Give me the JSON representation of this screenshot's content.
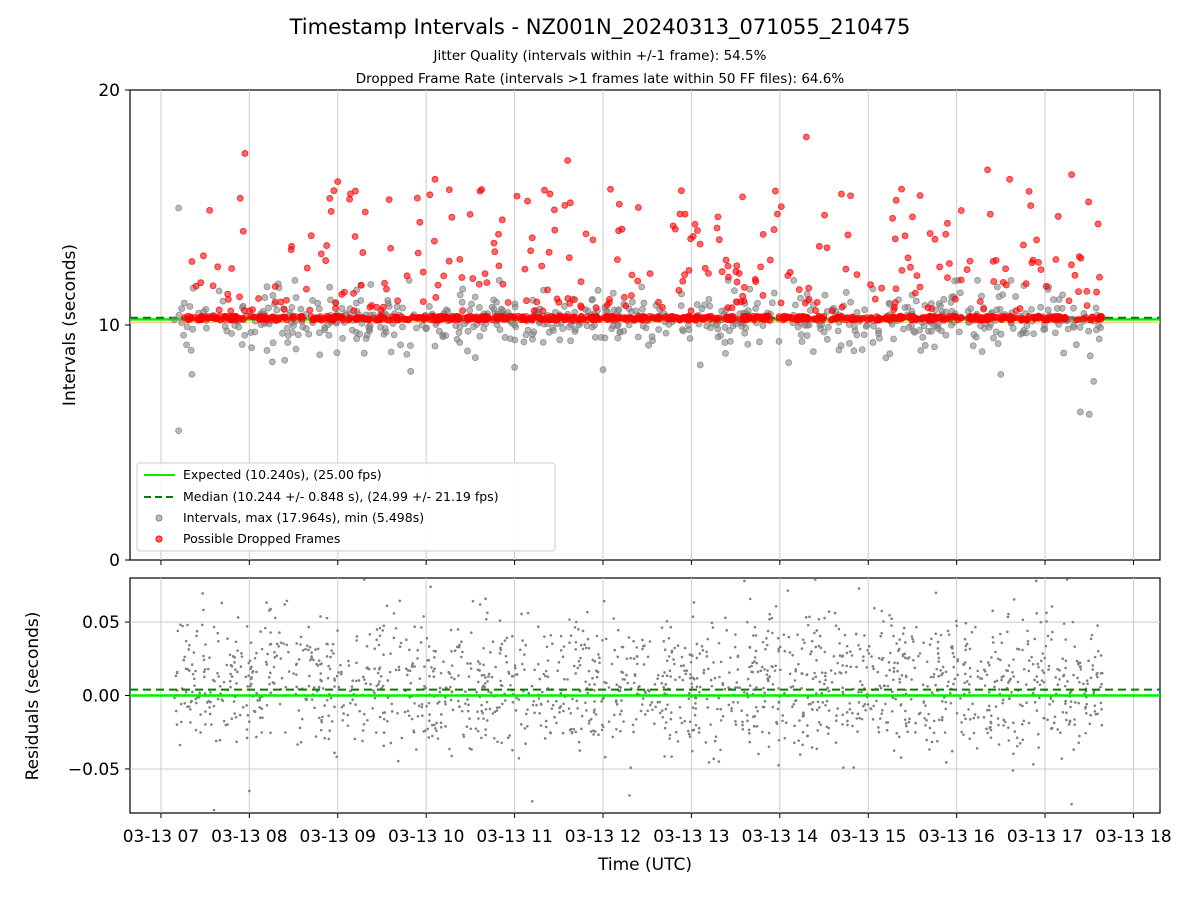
{
  "title": "Timestamp Intervals - NZ001N_20240313_071055_210475",
  "subtitle_1": "Jitter Quality (intervals within +/-1 frame): 54.5%",
  "subtitle_2": "Dropped Frame Rate (intervals >1 frames late within 50 FF files): 64.6%",
  "colors": {
    "expected": "#00ee00",
    "median": "#008000",
    "intervals": "#808080",
    "dropped": "#ff0000",
    "band": "#ffd27a",
    "grid": "#cccccc"
  },
  "chart_data": [
    {
      "type": "scatter",
      "panel": "top",
      "ylabel": "Intervals (seconds)",
      "ylim": [
        0,
        20
      ],
      "yticks": [
        "0",
        "10",
        "20"
      ],
      "grid": true,
      "legend_position": "lower-left",
      "expected_value": 10.24,
      "median_value": 10.244,
      "series": [
        {
          "name": "Expected (10.240s), (25.00 fps)",
          "style": "solid-line"
        },
        {
          "name": "Median (10.244 +/- 0.848 s), (24.99 +/- 21.19 fps)",
          "style": "dashed-line"
        },
        {
          "name": "Intervals, max (17.964s), min (5.498s)",
          "style": "scatter",
          "max": 17.964,
          "min": 5.498,
          "sample_points": [
            [
              7.2,
              14.98
            ],
            [
              7.2,
              5.5
            ],
            [
              7.35,
              7.9
            ],
            [
              7.5,
              10.3
            ],
            [
              8.4,
              8.5
            ],
            [
              9.3,
              8.8
            ],
            [
              10.1,
              9.1
            ],
            [
              11.0,
              8.2
            ],
            [
              12.0,
              8.1
            ],
            [
              13.1,
              8.3
            ],
            [
              14.1,
              8.4
            ],
            [
              15.2,
              8.6
            ],
            [
              16.5,
              7.9
            ],
            [
              17.4,
              6.3
            ],
            [
              17.5,
              6.2
            ],
            [
              17.55,
              7.6
            ]
          ]
        },
        {
          "name": "Possible Dropped Frames",
          "style": "scatter",
          "sample_points": [
            [
              7.45,
              11.8
            ],
            [
              7.95,
              17.3
            ],
            [
              8.7,
              13.8
            ],
            [
              9.0,
              16.1
            ],
            [
              9.2,
              15.7
            ],
            [
              9.9,
              15.4
            ],
            [
              10.1,
              16.2
            ],
            [
              11.45,
              14.9
            ],
            [
              11.6,
              17.0
            ],
            [
              12.4,
              15.0
            ],
            [
              13.3,
              14.6
            ],
            [
              13.95,
              15.7
            ],
            [
              14.3,
              18.0
            ],
            [
              14.8,
              15.5
            ],
            [
              15.5,
              14.6
            ],
            [
              16.35,
              16.6
            ],
            [
              16.6,
              16.2
            ],
            [
              17.3,
              16.4
            ],
            [
              17.6,
              14.3
            ]
          ]
        }
      ]
    },
    {
      "type": "scatter",
      "panel": "bottom",
      "xlabel": "Time (UTC)",
      "ylabel": "Residuals (seconds)",
      "ylim": [
        -0.08,
        0.08
      ],
      "yticks": [
        "−0.05",
        "0.00",
        "0.05"
      ],
      "grid": true,
      "expected_residual": 0.0,
      "median_residual": 0.004,
      "xlim": [
        6.65,
        18.3
      ],
      "xtick_values": [
        7,
        8,
        9,
        10,
        11,
        12,
        13,
        14,
        15,
        16,
        17,
        18
      ],
      "xtick_labels": [
        "03-13 07",
        "03-13 08",
        "03-13 09",
        "03-13 10",
        "03-13 11",
        "03-13 12",
        "03-13 13",
        "03-13 14",
        "03-13 15",
        "03-13 16",
        "03-13 17",
        "03-13 18"
      ],
      "series": [
        {
          "name": "Residuals",
          "style": "scatter",
          "data_range_x": [
            7.15,
            17.65
          ],
          "sample_points": [
            [
              7.3,
              0.048
            ],
            [
              7.6,
              -0.078
            ],
            [
              8.0,
              -0.065
            ],
            [
              8.4,
              0.062
            ],
            [
              9.3,
              0.079
            ],
            [
              10.05,
              0.074
            ],
            [
              11.2,
              -0.072
            ],
            [
              12.3,
              -0.068
            ],
            [
              13.6,
              0.078
            ],
            [
              14.4,
              0.079
            ],
            [
              16.9,
              0.078
            ],
            [
              17.25,
              0.079
            ],
            [
              17.3,
              -0.074
            ]
          ]
        }
      ]
    }
  ]
}
